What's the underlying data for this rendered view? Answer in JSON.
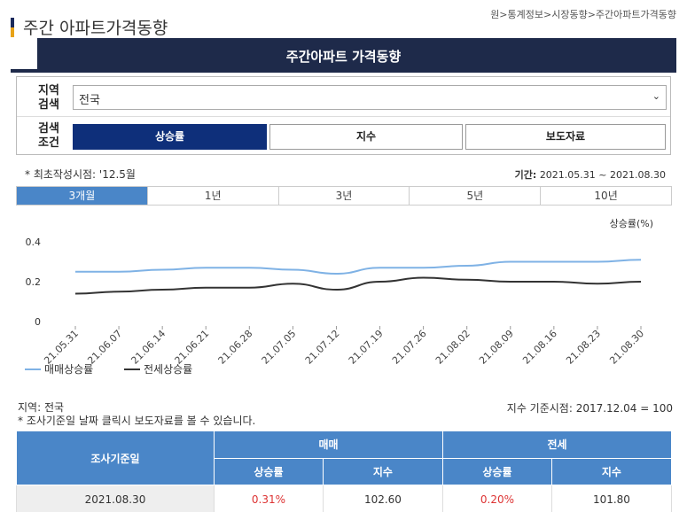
{
  "page": {
    "title": "주간 아파트가격동향",
    "breadcrumb": "원>통계정보>시장동향>주간아파트가격동향"
  },
  "banner": {
    "title": "주간아파트 가격동향"
  },
  "search": {
    "region_label": "지역\n검색",
    "region_value": "전국",
    "condition_label": "검색\n조건",
    "conditions": [
      {
        "label": "상승률",
        "active": true
      },
      {
        "label": "지수",
        "active": false
      },
      {
        "label": "보도자료",
        "active": false
      }
    ]
  },
  "info": {
    "first_created": "* 최초작성시점: '12.5월",
    "period_label": "기간:",
    "period_value": "2021.05.31 ~ 2021.08.30"
  },
  "period_tabs": [
    {
      "label": "3개월",
      "active": true
    },
    {
      "label": "1년",
      "active": false
    },
    {
      "label": "3년",
      "active": false
    },
    {
      "label": "5년",
      "active": false
    },
    {
      "label": "10년",
      "active": false
    }
  ],
  "chart_data": {
    "type": "line",
    "ylabel": "상승률(%)",
    "ylim": [
      0,
      0.4
    ],
    "y_ticks": [
      "0",
      "0.2",
      "0.4"
    ],
    "categories": [
      "21.05.31",
      "21.06.07",
      "21.06.14",
      "21.06.21",
      "21.06.28",
      "21.07.05",
      "21.07.12",
      "21.07.19",
      "21.07.26",
      "21.08.02",
      "21.08.09",
      "21.08.16",
      "21.08.23",
      "21.08.30"
    ],
    "series": [
      {
        "name": "매매상승률",
        "color": "#7fb2e5",
        "values": [
          0.25,
          0.25,
          0.26,
          0.27,
          0.27,
          0.26,
          0.24,
          0.27,
          0.27,
          0.28,
          0.3,
          0.3,
          0.3,
          0.31
        ]
      },
      {
        "name": "전세상승률",
        "color": "#333333",
        "values": [
          0.14,
          0.15,
          0.16,
          0.17,
          0.17,
          0.19,
          0.16,
          0.2,
          0.22,
          0.21,
          0.2,
          0.2,
          0.19,
          0.2
        ]
      }
    ],
    "grid": false,
    "legend": "bottom-left"
  },
  "notes": {
    "region": "지역: 전국",
    "click": "* 조사기준일 날짜 클릭시 보도자료를 볼 수 있습니다.",
    "base": "지수 기준시점: 2017.12.04 = 100"
  },
  "table": {
    "col_date": "조사기준일",
    "group_sale": "매매",
    "group_jeonse": "전세",
    "sub_rate": "상승률",
    "sub_index": "지수",
    "rows": [
      {
        "date": "2021.08.30",
        "sale_rate": "0.31%",
        "sale_index": "102.60",
        "jeonse_rate": "0.20%",
        "jeonse_index": "101.80"
      }
    ]
  }
}
